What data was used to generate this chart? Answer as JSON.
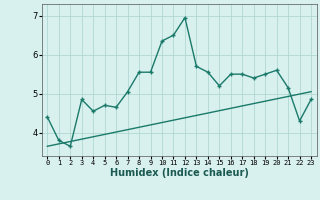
{
  "x": [
    0,
    1,
    2,
    3,
    4,
    5,
    6,
    7,
    8,
    9,
    10,
    11,
    12,
    13,
    14,
    15,
    16,
    17,
    18,
    19,
    20,
    21,
    22,
    23
  ],
  "y": [
    4.4,
    3.8,
    3.65,
    4.85,
    4.55,
    4.7,
    4.65,
    5.05,
    5.55,
    5.55,
    6.35,
    6.5,
    6.95,
    5.7,
    5.55,
    5.2,
    5.5,
    5.5,
    5.4,
    5.5,
    5.6,
    5.15,
    4.3,
    4.85
  ],
  "trend_x": [
    0,
    23
  ],
  "trend_y": [
    3.65,
    5.05
  ],
  "line_color": "#1a7a6a",
  "bg_color": "#d8f0ee",
  "grid_color": "#aad4ce",
  "xlabel": "Humidex (Indice chaleur)",
  "ylim": [
    3.4,
    7.3
  ],
  "xlim": [
    -0.5,
    23.5
  ],
  "yticks": [
    4,
    5,
    6,
    7
  ],
  "xtick_labels": [
    "0",
    "1",
    "2",
    "3",
    "4",
    "5",
    "6",
    "7",
    "8",
    "9",
    "10",
    "11",
    "12",
    "13",
    "14",
    "15",
    "16",
    "17",
    "18",
    "19",
    "20",
    "21",
    "22",
    "23"
  ],
  "marker": "+",
  "linewidth": 1.0,
  "markersize": 3.5,
  "xlabel_fontsize": 7,
  "tick_fontsize": 5,
  "ytick_fontsize": 6
}
